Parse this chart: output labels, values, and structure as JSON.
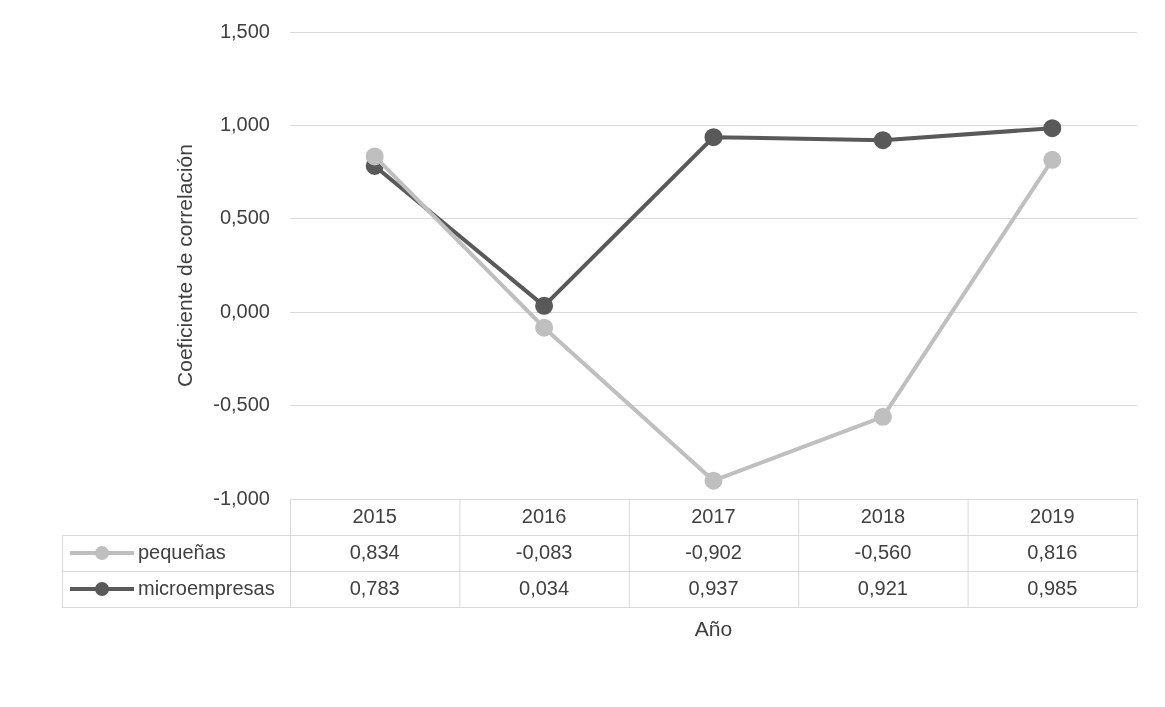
{
  "chart_data": {
    "type": "line",
    "xlabel": "Año",
    "ylabel": "Coeficiente de correlación",
    "categories": [
      "2015",
      "2016",
      "2017",
      "2018",
      "2019"
    ],
    "series": [
      {
        "name": "pequeñas",
        "color": "#bfbfbf",
        "values": [
          0.834,
          -0.083,
          -0.902,
          -0.56,
          0.816
        ],
        "value_labels": [
          "0,834",
          "-0,083",
          "-0,902",
          "-0,560",
          "0,816"
        ]
      },
      {
        "name": "microempresas",
        "color": "#595959",
        "values": [
          0.783,
          0.034,
          0.937,
          0.921,
          0.985
        ],
        "value_labels": [
          "0,783",
          "0,034",
          "0,937",
          "0,921",
          "0,985"
        ]
      }
    ],
    "ylim": [
      -1,
      1.5
    ],
    "yticks": [
      {
        "value": -1,
        "label": "-1,000"
      },
      {
        "value": -0.5,
        "label": "-0,500"
      },
      {
        "value": 0,
        "label": "0,000"
      },
      {
        "value": 0.5,
        "label": "0,500"
      },
      {
        "value": 1,
        "label": "1,000"
      },
      {
        "value": 1.5,
        "label": "1,500"
      }
    ],
    "grid": "y",
    "legend": "bottom",
    "marker": "circle",
    "line_style": "solid"
  }
}
